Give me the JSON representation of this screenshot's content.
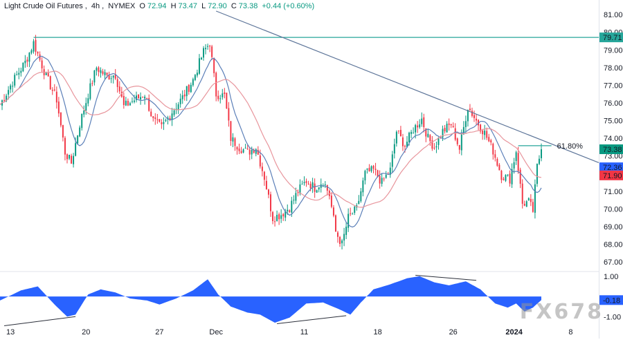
{
  "legend": {
    "name": "Light Crude Oil Futures",
    "timeframe": "4h",
    "exchange": "NYMEX",
    "o_label": "O",
    "o": "72.94",
    "h_label": "H",
    "h": "73.47",
    "l_label": "L",
    "l": "72.90",
    "c_label": "C",
    "c": "73.38",
    "change": "+0.44 (+0.60%)"
  },
  "watermark": "FX678",
  "colors": {
    "up": "#089981",
    "down": "#f23645",
    "ma_fast": "#5b7fb8",
    "ma_slow": "#e8959c",
    "trendline": "#5d7599",
    "resistance": "#26a69a",
    "fib_line": "#26a69a",
    "oscillator": "#2962ff"
  },
  "chart_data": {
    "type": "candlestick",
    "instrument": "Light Crude Oil Futures",
    "timeframe": "4h",
    "y_axis": {
      "range": [
        66.5,
        81.2
      ],
      "ticks": [
        "67.00",
        "68.00",
        "69.00",
        "70.00",
        "71.00",
        "72.00",
        "73.00",
        "74.00",
        "75.00",
        "76.00",
        "77.00",
        "78.00",
        "79.00",
        "80.00",
        "81.00"
      ]
    },
    "x_axis": {
      "range": [
        0,
        258
      ],
      "ticks": [
        {
          "label": "13",
          "x": 5
        },
        {
          "label": "20",
          "x": 41
        },
        {
          "label": "27",
          "x": 76
        },
        {
          "label": "Dec",
          "x": 103
        },
        {
          "label": "11",
          "x": 145
        },
        {
          "label": "18",
          "x": 180
        },
        {
          "label": "26",
          "x": 216
        },
        {
          "label": "2024",
          "x": 245
        },
        {
          "label": "8",
          "x": 272
        }
      ]
    },
    "price_labels": [
      {
        "value": 79.71,
        "text": "79.71",
        "color": "#26a69a"
      },
      {
        "value": 73.38,
        "text": "73.38",
        "color": "#089981"
      },
      {
        "value": 72.36,
        "text": "72.36",
        "color": "#2962ff"
      },
      {
        "value": 71.9,
        "text": "71.90",
        "color": "#f23645"
      }
    ],
    "resistance_level": 79.71,
    "trendline": {
      "x1": 103,
      "y1": 81.2,
      "x2": 289,
      "y2": 72.45
    },
    "fib_level": {
      "value": 73.58,
      "label": "61.80%",
      "x_start": 247
    },
    "anchors": [
      {
        "x": 0,
        "y": 75.9
      },
      {
        "x": 6,
        "y": 77.2
      },
      {
        "x": 12,
        "y": 78.3
      },
      {
        "x": 16,
        "y": 79.4
      },
      {
        "x": 22,
        "y": 77.5
      },
      {
        "x": 27,
        "y": 76.2
      },
      {
        "x": 31,
        "y": 73.2
      },
      {
        "x": 34,
        "y": 72.6
      },
      {
        "x": 38,
        "y": 74.8
      },
      {
        "x": 42,
        "y": 76.5
      },
      {
        "x": 46,
        "y": 78.0
      },
      {
        "x": 51,
        "y": 77.5
      },
      {
        "x": 55,
        "y": 77.6
      },
      {
        "x": 59,
        "y": 75.8
      },
      {
        "x": 63,
        "y": 76.1
      },
      {
        "x": 69,
        "y": 76.5
      },
      {
        "x": 73,
        "y": 75.0
      },
      {
        "x": 77,
        "y": 74.6
      },
      {
        "x": 82,
        "y": 75.5
      },
      {
        "x": 87,
        "y": 76.3
      },
      {
        "x": 92,
        "y": 77.3
      },
      {
        "x": 97,
        "y": 78.9
      },
      {
        "x": 100,
        "y": 79.4
      },
      {
        "x": 103,
        "y": 76.5
      },
      {
        "x": 107,
        "y": 76.4
      },
      {
        "x": 110,
        "y": 74.0
      },
      {
        "x": 114,
        "y": 73.5
      },
      {
        "x": 118,
        "y": 73.2
      },
      {
        "x": 122,
        "y": 73.5
      },
      {
        "x": 126,
        "y": 71.8
      },
      {
        "x": 130,
        "y": 69.5
      },
      {
        "x": 134,
        "y": 69.7
      },
      {
        "x": 138,
        "y": 70.1
      },
      {
        "x": 142,
        "y": 71.0
      },
      {
        "x": 146,
        "y": 71.6
      },
      {
        "x": 150,
        "y": 71.2
      },
      {
        "x": 154,
        "y": 71.6
      },
      {
        "x": 157,
        "y": 70.8
      },
      {
        "x": 160,
        "y": 68.7
      },
      {
        "x": 163,
        "y": 68.0
      },
      {
        "x": 166,
        "y": 69.5
      },
      {
        "x": 170,
        "y": 70.0
      },
      {
        "x": 174,
        "y": 72.0
      },
      {
        "x": 178,
        "y": 72.2
      },
      {
        "x": 182,
        "y": 71.5
      },
      {
        "x": 186,
        "y": 72.2
      },
      {
        "x": 189,
        "y": 74.4
      },
      {
        "x": 193,
        "y": 73.6
      },
      {
        "x": 197,
        "y": 74.5
      },
      {
        "x": 201,
        "y": 75.1
      },
      {
        "x": 204,
        "y": 74.0
      },
      {
        "x": 207,
        "y": 73.5
      },
      {
        "x": 211,
        "y": 74.4
      },
      {
        "x": 215,
        "y": 74.8
      },
      {
        "x": 219,
        "y": 73.4
      },
      {
        "x": 223,
        "y": 75.8
      },
      {
        "x": 227,
        "y": 75.0
      },
      {
        "x": 231,
        "y": 74.3
      },
      {
        "x": 235,
        "y": 73.3
      },
      {
        "x": 239,
        "y": 71.9
      },
      {
        "x": 243,
        "y": 71.7
      },
      {
        "x": 246,
        "y": 73.3
      },
      {
        "x": 249,
        "y": 70.3
      },
      {
        "x": 252,
        "y": 70.4
      },
      {
        "x": 254,
        "y": 69.9
      },
      {
        "x": 256,
        "y": 72.4
      },
      {
        "x": 258,
        "y": 73.38
      }
    ],
    "series": [
      {
        "name": "price",
        "role": "candles"
      },
      {
        "name": "ma_fast",
        "role": "moving-average",
        "period": 10
      },
      {
        "name": "ma_slow",
        "role": "moving-average",
        "period": 24
      }
    ],
    "oscillator": {
      "type": "area",
      "last_value": -0.18,
      "last_label": "-0.18",
      "ticks": [
        {
          "value": 1.0,
          "text": "1.00"
        },
        {
          "value": -1.0,
          "text": "-1.00"
        }
      ],
      "range": [
        -1.4,
        1.2
      ],
      "anchors": [
        {
          "x": 0,
          "y": -0.2
        },
        {
          "x": 10,
          "y": 0.3
        },
        {
          "x": 18,
          "y": 0.5
        },
        {
          "x": 26,
          "y": -0.4
        },
        {
          "x": 32,
          "y": -1.0
        },
        {
          "x": 36,
          "y": -0.9
        },
        {
          "x": 42,
          "y": 0.1
        },
        {
          "x": 48,
          "y": 0.35
        },
        {
          "x": 55,
          "y": 0.2
        },
        {
          "x": 62,
          "y": -0.1
        },
        {
          "x": 70,
          "y": -0.2
        },
        {
          "x": 76,
          "y": -0.4
        },
        {
          "x": 84,
          "y": -0.1
        },
        {
          "x": 92,
          "y": 0.3
        },
        {
          "x": 99,
          "y": 0.85
        },
        {
          "x": 104,
          "y": 0.1
        },
        {
          "x": 110,
          "y": -0.5
        },
        {
          "x": 118,
          "y": -0.8
        },
        {
          "x": 124,
          "y": -0.9
        },
        {
          "x": 131,
          "y": -1.3
        },
        {
          "x": 138,
          "y": -1.05
        },
        {
          "x": 146,
          "y": -0.35
        },
        {
          "x": 154,
          "y": -0.3
        },
        {
          "x": 162,
          "y": -0.65
        },
        {
          "x": 167,
          "y": -0.9
        },
        {
          "x": 172,
          "y": -0.3
        },
        {
          "x": 178,
          "y": 0.35
        },
        {
          "x": 186,
          "y": 0.6
        },
        {
          "x": 194,
          "y": 0.9
        },
        {
          "x": 200,
          "y": 1.0
        },
        {
          "x": 207,
          "y": 0.7
        },
        {
          "x": 214,
          "y": 0.55
        },
        {
          "x": 222,
          "y": 0.75
        },
        {
          "x": 229,
          "y": 0.35
        },
        {
          "x": 236,
          "y": -0.35
        },
        {
          "x": 242,
          "y": -0.55
        },
        {
          "x": 246,
          "y": -0.35
        },
        {
          "x": 250,
          "y": -0.75
        },
        {
          "x": 254,
          "y": -0.55
        },
        {
          "x": 258,
          "y": -0.18
        }
      ],
      "divergence_lines": [
        {
          "x1": 2,
          "y1": -1.45,
          "x2": 36,
          "y2": -1.0
        },
        {
          "x1": 132,
          "y1": -1.35,
          "x2": 165,
          "y2": -0.95
        },
        {
          "x1": 198,
          "y1": 1.05,
          "x2": 227,
          "y2": 0.8
        }
      ]
    }
  }
}
